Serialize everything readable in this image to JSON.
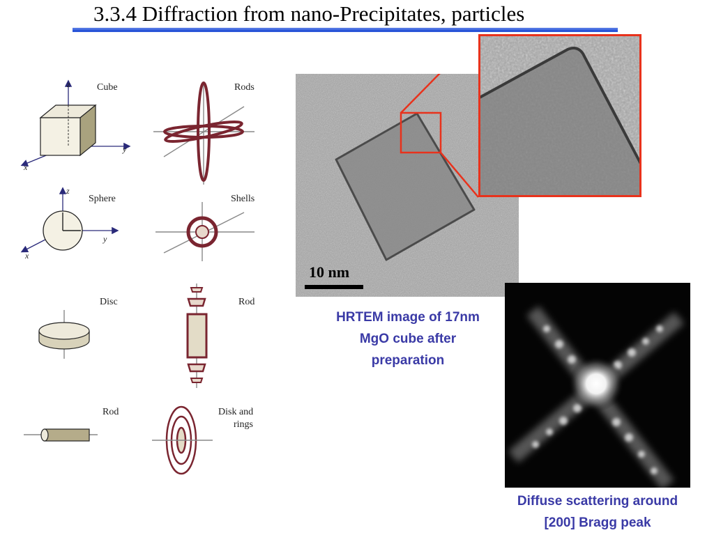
{
  "slide": {
    "title": "3.3.4 Diffraction from nano-Precipitates, particles"
  },
  "shapes": {
    "cube": {
      "label": "Cube",
      "axis_z": "z",
      "axis_y": "y",
      "axis_x": "x"
    },
    "rods_pair": {
      "label": "Rods"
    },
    "sphere": {
      "label": "Sphere",
      "axis_z": "z",
      "axis_y": "y",
      "axis_x": "x"
    },
    "shells": {
      "label": "Shells"
    },
    "disc": {
      "label": "Disc"
    },
    "rod_tall": {
      "label": "Rod"
    },
    "rod_small": {
      "label": "Rod"
    },
    "disk_rings": {
      "label_line1": "Disk and",
      "label_line2": "rings"
    }
  },
  "tem_image": {
    "scale_bar_label": "10 nm",
    "caption_line1": "HRTEM image of 17nm",
    "caption_line2": "MgO cube after",
    "caption_line3": "preparation"
  },
  "diffraction_image": {
    "caption_line1": "Diffuse scattering around",
    "caption_line2": "[200] Bragg peak"
  },
  "colors": {
    "caption": "#3a3aa6",
    "highlight_box": "#e8321c",
    "rod_red": "#7a2530",
    "underline_blue": "#2b56d8"
  }
}
